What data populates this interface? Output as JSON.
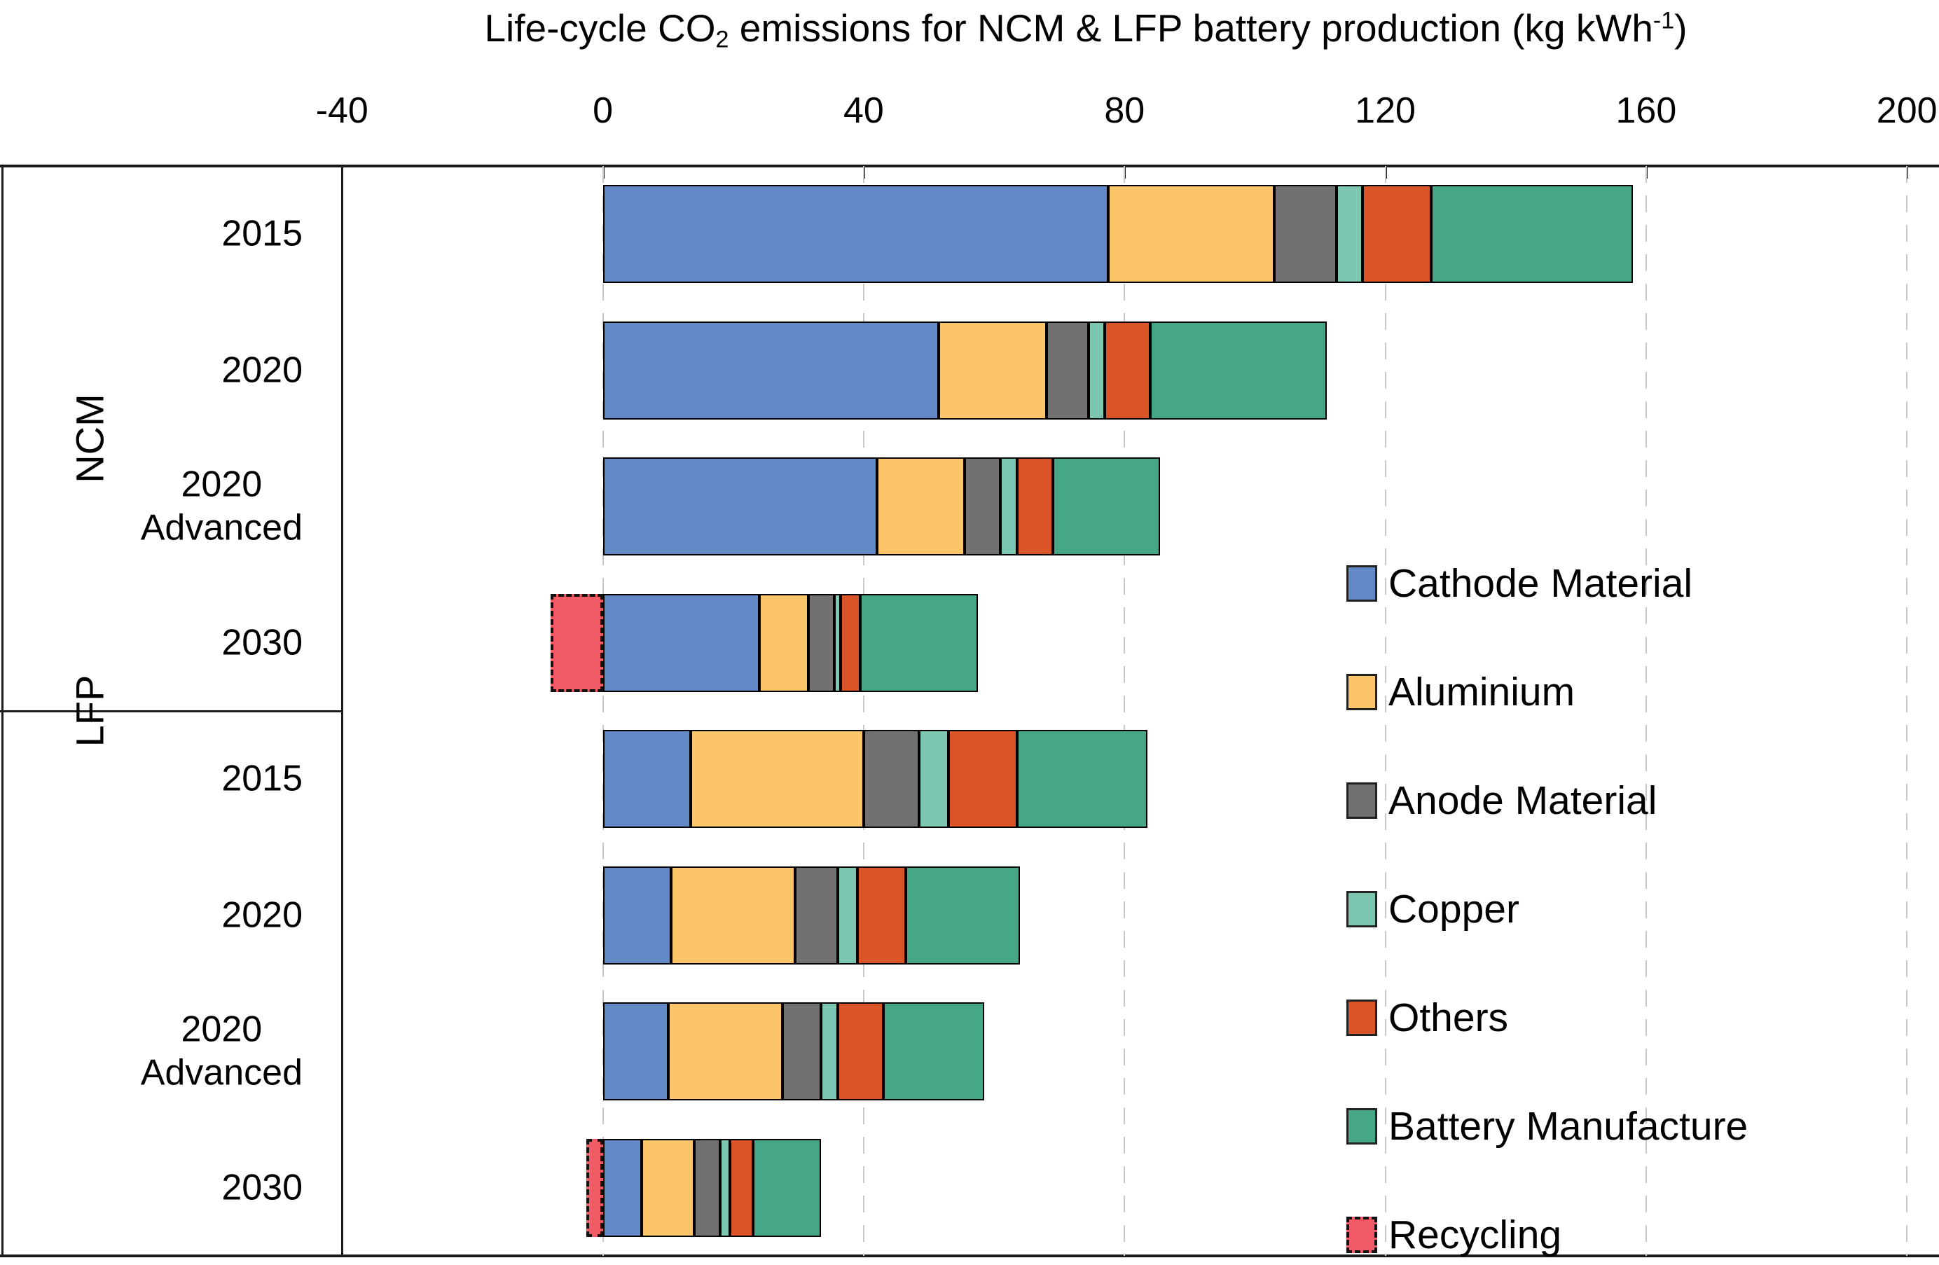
{
  "title": {
    "prefix": "Life-cycle CO",
    "subscript": "2",
    "middle": " emissions for NCM & LFP battery production (kg kWh",
    "superscript": "-1",
    "suffix": ")"
  },
  "groups": [
    {
      "label": "NCM",
      "rows": [
        [
          "2015"
        ],
        [
          "2020"
        ],
        [
          "2020",
          "Advanced"
        ],
        [
          "2030"
        ]
      ]
    },
    {
      "label": "LFP",
      "rows": [
        [
          "2015"
        ],
        [
          "2020"
        ],
        [
          "2020",
          "Advanced"
        ],
        [
          "2030"
        ]
      ]
    }
  ],
  "chart_data": {
    "type": "bar",
    "orientation": "horizontal",
    "stacked": true,
    "title": "Life-cycle CO2 emissions for NCM & LFP battery production (kg kWh-1)",
    "xlim": [
      -40,
      205
    ],
    "xticks": [
      -40,
      0,
      40,
      80,
      120,
      160,
      200
    ],
    "grid": true,
    "legend_position": "right-middle",
    "categories": [
      "NCM 2015",
      "NCM 2020",
      "NCM 2020 Advanced",
      "NCM 2030",
      "LFP 2015",
      "LFP 2020",
      "LFP 2020 Advanced",
      "LFP 2030"
    ],
    "series": [
      {
        "name": "Cathode Material",
        "color": "#6289C5",
        "border": "solid",
        "values": [
          77.5,
          51.5,
          42.0,
          24.0,
          13.5,
          10.5,
          10.0,
          6.0
        ]
      },
      {
        "name": "Aluminium",
        "color": "#FCC56A",
        "border": "solid",
        "values": [
          25.5,
          16.5,
          13.5,
          7.5,
          26.5,
          19.0,
          17.5,
          8.0
        ]
      },
      {
        "name": "Anode Material",
        "color": "#727070",
        "border": "solid",
        "values": [
          9.5,
          6.5,
          5.5,
          4.0,
          8.5,
          6.5,
          6.0,
          4.0
        ]
      },
      {
        "name": "Copper",
        "color": "#7DC7B2",
        "border": "solid",
        "values": [
          4.0,
          2.5,
          2.5,
          1.0,
          4.5,
          3.0,
          2.5,
          1.5
        ]
      },
      {
        "name": "Others",
        "color": "#DA5427",
        "border": "solid",
        "values": [
          10.5,
          7.0,
          5.5,
          3.0,
          10.5,
          7.5,
          7.0,
          3.5
        ]
      },
      {
        "name": "Battery Manufacture",
        "color": "#45A787",
        "border": "solid",
        "values": [
          31.0,
          27.0,
          16.5,
          18.0,
          20.0,
          17.5,
          15.5,
          10.5
        ]
      },
      {
        "name": "Recycling",
        "color": "#F05B66",
        "border": "dashed",
        "values": [
          0,
          0,
          0,
          -8.0,
          0,
          0,
          0,
          -2.5
        ]
      }
    ],
    "gross_totals": [
      158.0,
      111.0,
      85.5,
      57.5,
      83.5,
      64.0,
      58.5,
      33.5
    ],
    "colors": {
      "axis": "#1a1a1a",
      "gridline": "#c9c9c9",
      "bar_border": "#000000"
    }
  }
}
